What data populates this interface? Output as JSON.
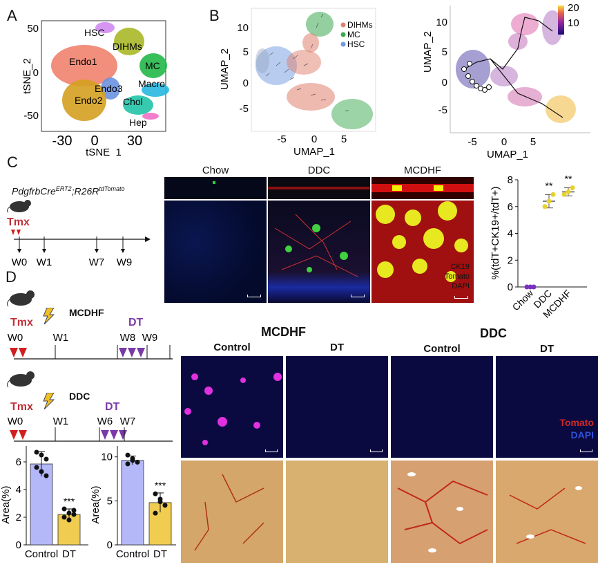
{
  "panels": {
    "A": "A",
    "B": "B",
    "C": "C",
    "D": "D"
  },
  "tsne": {
    "xlabel": "tSNE_1",
    "ylabel": "tSNE_2",
    "xticks": [
      "-30",
      "0",
      "30"
    ],
    "yticks": [
      "50",
      "0",
      "-50"
    ],
    "clusters": [
      {
        "name": "HSC",
        "color": "#d08af0"
      },
      {
        "name": "DIHMs",
        "color": "#a8b828"
      },
      {
        "name": "MC",
        "color": "#22b84a"
      },
      {
        "name": "Endo1",
        "color": "#f0826e"
      },
      {
        "name": "Macro",
        "color": "#28b8e0"
      },
      {
        "name": "Endo3",
        "color": "#6a92e0"
      },
      {
        "name": "Chol",
        "color": "#22c4a8"
      },
      {
        "name": "Endo2",
        "color": "#d4a020"
      },
      {
        "name": "Hep",
        "color": "#f070c8"
      }
    ]
  },
  "umap_velocity": {
    "xlabel": "UMAP_1",
    "ylabel": "UMAP_2",
    "xticks": [
      "-5",
      "0",
      "5"
    ],
    "yticks": [
      "10",
      "5",
      "0",
      "-5"
    ],
    "legend": [
      {
        "name": "DIHMs",
        "color": "#e0806e"
      },
      {
        "name": "MC",
        "color": "#3aa850"
      },
      {
        "name": "HSC",
        "color": "#6f9ae0"
      }
    ]
  },
  "umap_pseudotime": {
    "xlabel": "UMAP_1",
    "ylabel": "UMAP_2",
    "xticks": [
      "-5",
      "0",
      "5"
    ],
    "yticks": [
      "10",
      "5",
      "0",
      "-5"
    ],
    "colorbar": {
      "ticks": [
        "20",
        "10"
      ]
    }
  },
  "panel_c": {
    "genotype_main": "PdgfrbCre",
    "genotype_sup1": "ERT2",
    "genotype_mid": ";R26R",
    "genotype_sup2": "tdTomato",
    "tmx": "Tmx",
    "weeks": [
      "W0",
      "W1",
      "W7",
      "W9"
    ],
    "image_titles": [
      "Chow",
      "DDC",
      "MCDHF"
    ],
    "stain_labels": [
      {
        "text": "CK19",
        "color": "#2bd24a"
      },
      {
        "text": "Tomato",
        "color": "#e83030"
      },
      {
        "text": "DAPI",
        "color": "#2f6fe8"
      }
    ]
  },
  "chart_c": {
    "ylabel": "%(tdT+CK19+/tdT+)",
    "yticks": [
      "0",
      "2",
      "4",
      "6",
      "8"
    ],
    "categories": [
      "Chow",
      "DDC",
      "MCDHF"
    ],
    "significance": [
      "",
      "**",
      "**"
    ]
  },
  "panel_d": {
    "mcdhf_label": "MCDHF",
    "ddc_label": "DDC",
    "tmx": "Tmx",
    "dt": "DT",
    "mcdhf_weeks": [
      "W0",
      "W1",
      "W8",
      "W9"
    ],
    "ddc_weeks": [
      "W0",
      "W1",
      "W6",
      "W7"
    ],
    "header_mcdhf": "MCDHF",
    "header_ddc": "DDC",
    "col_labels": [
      "Control",
      "DT",
      "Control",
      "DT"
    ],
    "stain_labels": [
      {
        "text": "Tomato",
        "color": "#d02828"
      },
      {
        "text": "DAPI",
        "color": "#2f50d8"
      }
    ]
  },
  "chart_data": [
    {
      "type": "scatter",
      "title": "",
      "xlabel": "tSNE_1",
      "ylabel": "tSNE_2",
      "xlim": [
        -45,
        50
      ],
      "ylim": [
        -75,
        70
      ],
      "series": [
        {
          "name": "HSC"
        },
        {
          "name": "DIHMs"
        },
        {
          "name": "MC"
        },
        {
          "name": "Endo1"
        },
        {
          "name": "Macro"
        },
        {
          "name": "Endo3"
        },
        {
          "name": "Chol"
        },
        {
          "name": "Endo2"
        },
        {
          "name": "Hep"
        }
      ]
    },
    {
      "type": "scatter",
      "title": "",
      "xlabel": "UMAP_1",
      "ylabel": "UMAP_2",
      "xlim": [
        -9,
        9
      ],
      "ylim": [
        -8,
        13
      ],
      "series": [
        {
          "name": "DIHMs"
        },
        {
          "name": "MC"
        },
        {
          "name": "HSC"
        }
      ]
    },
    {
      "type": "scatter",
      "title": "",
      "xlabel": "UMAP_1",
      "ylabel": "UMAP_2",
      "xlim": [
        -9,
        9
      ],
      "ylim": [
        -8,
        13
      ]
    },
    {
      "type": "scatter",
      "title": "",
      "ylabel": "%(tdT+CK19+/tdT+)",
      "categories": [
        "Chow",
        "DDC",
        "MCDHF"
      ],
      "ylim": [
        0,
        8
      ],
      "series": [
        {
          "values": [
            [
              0,
              0,
              0
            ],
            [
              6.0,
              6.4,
              6.9
            ],
            [
              6.9,
              7.1,
              7.4
            ]
          ]
        }
      ],
      "mean": [
        0,
        6.4,
        7.1
      ],
      "err": [
        0,
        0.5,
        0.3
      ]
    },
    {
      "type": "bar",
      "title": "",
      "ylabel": "Area(%)",
      "categories": [
        "Control",
        "DT"
      ],
      "ylim": [
        0,
        7
      ],
      "values": [
        5.85,
        2.2
      ],
      "err": [
        0.9,
        0.4
      ],
      "points": [
        [
          6.7,
          6.5,
          6.2,
          5.6,
          5.3,
          5.0
        ],
        [
          2.6,
          2.3,
          2.2,
          2.0,
          1.8,
          2.5
        ]
      ],
      "significance": [
        "",
        "***"
      ]
    },
    {
      "type": "bar",
      "title": "",
      "ylabel": "Area(%)",
      "categories": [
        "Control",
        "DT"
      ],
      "ylim": [
        0,
        11
      ],
      "values": [
        9.6,
        4.8
      ],
      "err": [
        0.5,
        1.1
      ],
      "points": [
        [
          10.2,
          9.8,
          9.4,
          9.2,
          9.6
        ],
        [
          5.8,
          5.2,
          4.5,
          3.6,
          4.9
        ]
      ],
      "significance": [
        "",
        "***"
      ]
    }
  ]
}
